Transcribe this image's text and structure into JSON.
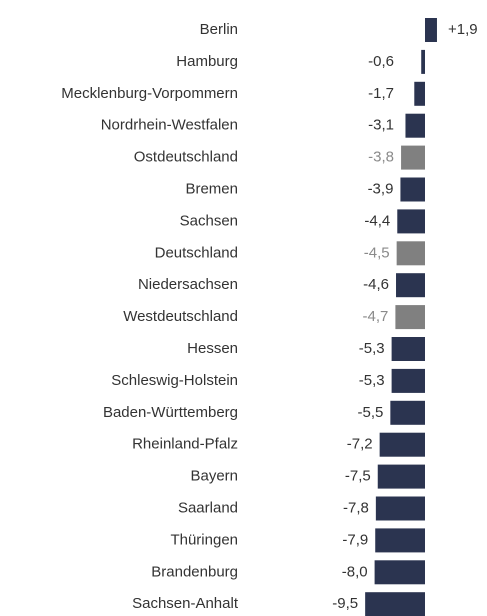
{
  "chart_data": {
    "type": "bar",
    "orientation": "horizontal",
    "categories": [
      "Berlin",
      "Hamburg",
      "Mecklenburg-Vorpommern",
      "Nordrhein-Westfalen",
      "Ostdeutschland",
      "Bremen",
      "Sachsen",
      "Deutschland",
      "Niedersachsen",
      "Westdeutschland",
      "Hessen",
      "Schleswig-Holstein",
      "Baden-Württemberg",
      "Rheinland-Pfalz",
      "Bayern",
      "Saarland",
      "Thüringen",
      "Brandenburg",
      "Sachsen-Anhalt"
    ],
    "values": [
      1.9,
      -0.6,
      -1.7,
      -3.1,
      -3.8,
      -3.9,
      -4.4,
      -4.5,
      -4.6,
      -4.7,
      -5.3,
      -5.3,
      -5.5,
      -7.2,
      -7.5,
      -7.8,
      -7.9,
      -8.0,
      -9.5
    ],
    "value_labels": [
      "+1,9",
      "-0,6",
      "-1,7",
      "-3,1",
      "-3,8",
      "-3,9",
      "-4,4",
      "-4,5",
      "-4,6",
      "-4,7",
      "-5,3",
      "-5,3",
      "-5,5",
      "-7,2",
      "-7,5",
      "-7,8",
      "-7,9",
      "-8,0",
      "-9,5"
    ],
    "colors": [
      "#2b3450",
      "#2b3450",
      "#2b3450",
      "#2b3450",
      "#808080",
      "#2b3450",
      "#2b3450",
      "#808080",
      "#2b3450",
      "#808080",
      "#2b3450",
      "#2b3450",
      "#2b3450",
      "#2b3450",
      "#2b3450",
      "#2b3450",
      "#2b3450",
      "#2b3450",
      "#2b3450"
    ]
  }
}
